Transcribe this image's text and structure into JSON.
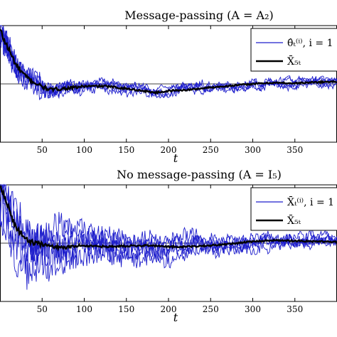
{
  "chart_data": [
    {
      "type": "line",
      "title": "Message-passing (A = A₂)",
      "xlabel": "t",
      "ylabel": "",
      "xlim": [
        0,
        400
      ],
      "xticks": [
        50,
        100,
        150,
        200,
        250,
        300,
        350
      ],
      "ylim": [
        -1,
        1
      ],
      "reference_y": 0,
      "grid": false,
      "legend_position": "top-right",
      "colors": {
        "component": "#1f1fcc",
        "mean": "#000000",
        "reference": "#000000"
      },
      "series": [
        {
          "name": "θ̂ₜ⁽ⁱ⁾, i = 1",
          "role": "component",
          "count": 5,
          "x": [
            0,
            5,
            10,
            15,
            20,
            30,
            40,
            50,
            60,
            75,
            90,
            100,
            125,
            150,
            175,
            185,
            200,
            225,
            250,
            275,
            300,
            325,
            350,
            375,
            400
          ],
          "values": [
            0.92,
            0.75,
            0.6,
            0.45,
            0.3,
            0.13,
            0.03,
            -0.05,
            -0.1,
            -0.08,
            -0.06,
            -0.04,
            -0.04,
            -0.08,
            -0.13,
            -0.15,
            -0.12,
            -0.1,
            -0.06,
            -0.03,
            0.0,
            0.02,
            0.01,
            0.03,
            0.04
          ]
        },
        {
          "name": "X̄₅ₜ",
          "role": "mean",
          "x": [
            0,
            5,
            10,
            15,
            20,
            30,
            40,
            50,
            60,
            75,
            90,
            100,
            125,
            150,
            175,
            185,
            200,
            225,
            250,
            275,
            300,
            325,
            350,
            375,
            400
          ],
          "values": [
            0.92,
            0.75,
            0.6,
            0.45,
            0.3,
            0.13,
            0.03,
            -0.05,
            -0.1,
            -0.08,
            -0.06,
            -0.04,
            -0.04,
            -0.08,
            -0.13,
            -0.15,
            -0.12,
            -0.1,
            -0.06,
            -0.03,
            0.0,
            0.02,
            0.01,
            0.03,
            0.04
          ]
        }
      ]
    },
    {
      "type": "line",
      "title": "No message-passing (A = I₅)",
      "xlabel": "t",
      "ylabel": "",
      "xlim": [
        0,
        400
      ],
      "xticks": [
        50,
        100,
        150,
        200,
        250,
        300,
        350
      ],
      "ylim": [
        -1,
        1
      ],
      "reference_y": 0,
      "grid": false,
      "legend_position": "top-right",
      "colors": {
        "component": "#1f1fcc",
        "mean": "#000000",
        "reference": "#000000"
      },
      "series": [
        {
          "name": "X̄ₜ⁽ⁱ⁾, i = 1",
          "role": "component",
          "count": 5,
          "x": [
            0,
            5,
            10,
            15,
            20,
            30,
            40,
            50,
            60,
            75,
            90,
            100,
            125,
            150,
            175,
            200,
            225,
            250,
            275,
            300,
            325,
            350,
            375,
            400
          ],
          "values": [
            0.95,
            0.8,
            0.62,
            0.4,
            0.25,
            0.08,
            0.0,
            -0.02,
            -0.05,
            -0.08,
            -0.05,
            -0.04,
            -0.06,
            -0.05,
            -0.04,
            -0.06,
            -0.06,
            -0.04,
            -0.01,
            0.03,
            0.05,
            0.04,
            0.03,
            0.02
          ]
        },
        {
          "name": "X̄₅ₜ",
          "role": "mean",
          "x": [
            0,
            5,
            10,
            15,
            20,
            30,
            40,
            50,
            60,
            75,
            90,
            100,
            125,
            150,
            175,
            200,
            225,
            250,
            275,
            300,
            325,
            350,
            375,
            400
          ],
          "values": [
            0.95,
            0.8,
            0.62,
            0.4,
            0.25,
            0.08,
            0.0,
            -0.02,
            -0.05,
            -0.08,
            -0.05,
            -0.04,
            -0.06,
            -0.05,
            -0.04,
            -0.06,
            -0.06,
            -0.04,
            -0.01,
            0.03,
            0.05,
            0.04,
            0.03,
            0.02
          ]
        }
      ]
    }
  ]
}
